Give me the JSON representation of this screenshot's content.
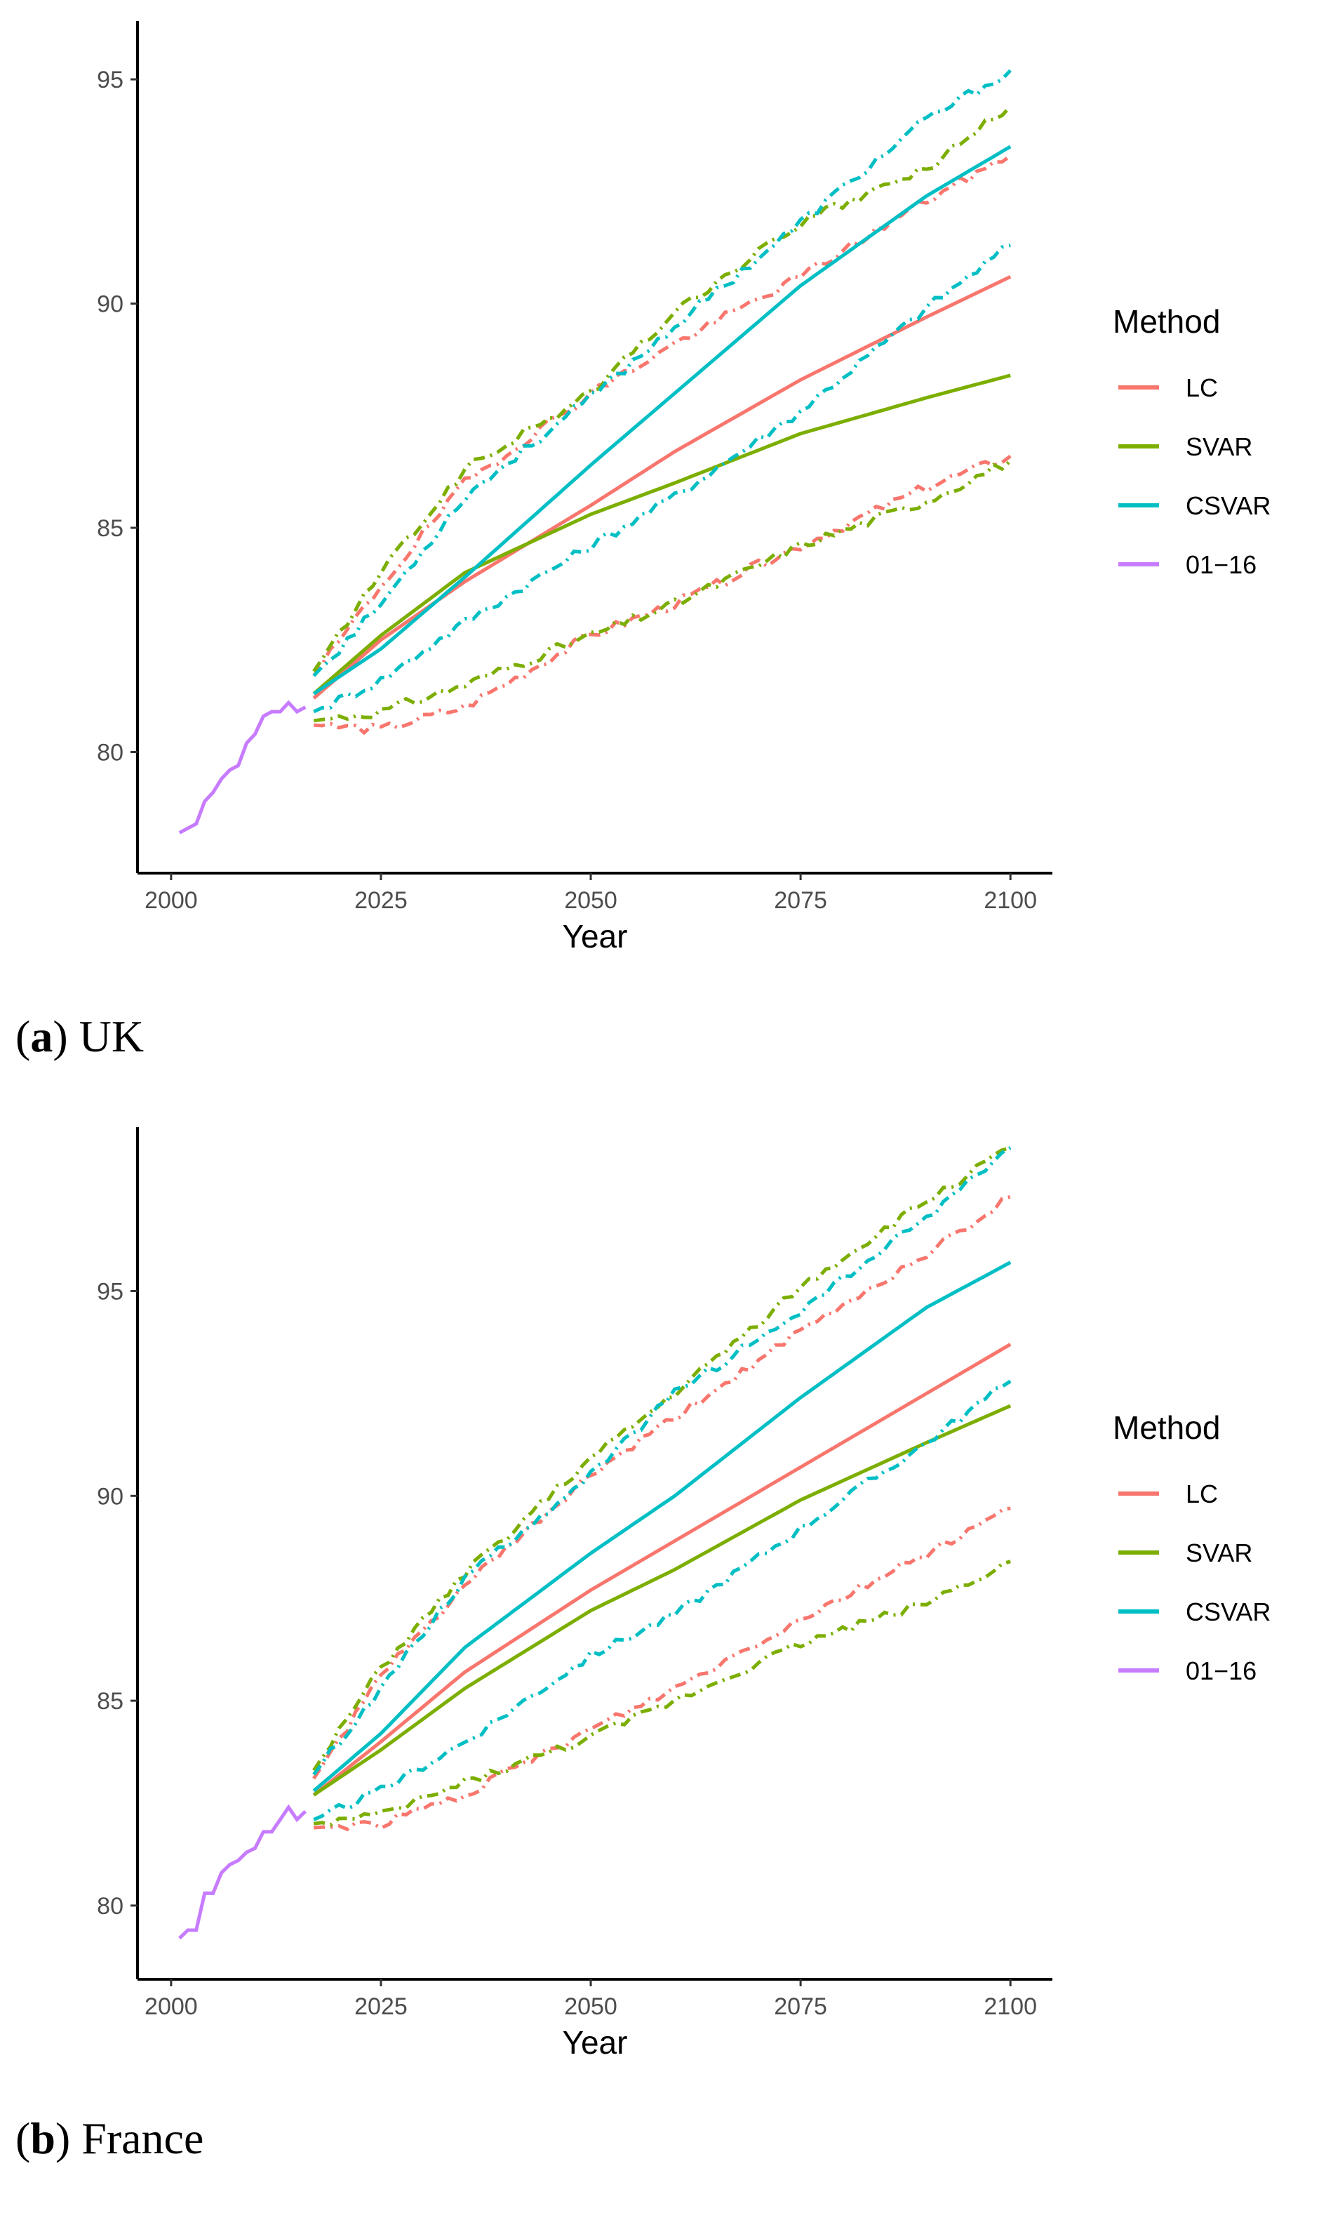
{
  "chart_data": [
    {
      "type": "line",
      "caption_letter": "a",
      "caption_text": "UK",
      "xlabel": "Year",
      "ylabel": "",
      "xlim": [
        1996,
        2105
      ],
      "ylim": [
        77.3,
        96.3
      ],
      "xticks": [
        2000,
        2025,
        2050,
        2075,
        2100
      ],
      "yticks": [
        80,
        85,
        90,
        95
      ],
      "legend": {
        "title": "Method",
        "position": "right",
        "entries": [
          {
            "name": "LC",
            "color": "#F8766D"
          },
          {
            "name": "SVAR",
            "color": "#7CAE00"
          },
          {
            "name": "CSVAR",
            "color": "#00BFC4"
          },
          {
            "name": "01−16",
            "color": "#C77CFF"
          }
        ]
      },
      "historical": {
        "name": "01−16",
        "x": [
          2001,
          2002,
          2003,
          2004,
          2005,
          2006,
          2007,
          2008,
          2009,
          2010,
          2011,
          2012,
          2013,
          2014,
          2015,
          2016
        ],
        "y": [
          78.2,
          78.3,
          78.4,
          78.9,
          79.1,
          79.4,
          79.6,
          79.7,
          80.2,
          80.4,
          80.8,
          80.9,
          80.9,
          81.1,
          80.9,
          81.0
        ]
      },
      "series": [
        {
          "name": "LC",
          "color": "#F8766D",
          "x": [
            2017,
            2025,
            2035,
            2050,
            2060,
            2075,
            2090,
            2100
          ],
          "mean": [
            81.2,
            82.5,
            83.8,
            85.5,
            86.7,
            88.3,
            89.7,
            90.6
          ],
          "lower": [
            80.6,
            80.5,
            81.0,
            82.6,
            83.3,
            84.6,
            85.9,
            86.6
          ],
          "upper": [
            81.7,
            83.7,
            86.0,
            88.0,
            89.1,
            90.6,
            92.3,
            93.3
          ]
        },
        {
          "name": "SVAR",
          "color": "#7CAE00",
          "x": [
            2017,
            2025,
            2035,
            2050,
            2060,
            2075,
            2090,
            2100
          ],
          "mean": [
            81.3,
            82.6,
            84.0,
            85.3,
            86.0,
            87.1,
            87.9,
            88.4
          ],
          "lower": [
            80.7,
            80.9,
            81.5,
            82.6,
            83.3,
            84.6,
            85.6,
            86.5
          ],
          "upper": [
            81.8,
            84.0,
            86.3,
            88.0,
            89.8,
            91.8,
            93.0,
            94.4
          ]
        },
        {
          "name": "CSVAR",
          "color": "#00BFC4",
          "x": [
            2017,
            2025,
            2035,
            2050,
            2060,
            2075,
            2090,
            2100
          ],
          "mean": [
            81.3,
            82.3,
            83.9,
            86.4,
            88.0,
            90.4,
            92.4,
            93.5
          ],
          "lower": [
            80.9,
            81.6,
            82.9,
            84.6,
            85.7,
            87.6,
            89.9,
            91.3
          ],
          "upper": [
            81.7,
            83.3,
            85.7,
            87.9,
            89.5,
            91.8,
            94.1,
            95.2
          ]
        }
      ]
    },
    {
      "type": "line",
      "caption_letter": "b",
      "caption_text": "France",
      "xlabel": "Year",
      "ylabel": "",
      "xlim": [
        1996,
        2105
      ],
      "ylim": [
        78.2,
        99.0
      ],
      "xticks": [
        2000,
        2025,
        2050,
        2075,
        2100
      ],
      "yticks": [
        80,
        85,
        90,
        95
      ],
      "legend": {
        "title": "Method",
        "position": "right",
        "entries": [
          {
            "name": "LC",
            "color": "#F8766D"
          },
          {
            "name": "SVAR",
            "color": "#7CAE00"
          },
          {
            "name": "CSVAR",
            "color": "#00BFC4"
          },
          {
            "name": "01−16",
            "color": "#C77CFF"
          }
        ]
      },
      "historical": {
        "name": "01−16",
        "x": [
          2001,
          2002,
          2003,
          2004,
          2005,
          2006,
          2007,
          2008,
          2009,
          2010,
          2011,
          2012,
          2013,
          2014,
          2015,
          2016
        ],
        "y": [
          79.2,
          79.4,
          79.4,
          80.3,
          80.3,
          80.8,
          81.0,
          81.1,
          81.3,
          81.4,
          81.8,
          81.8,
          82.1,
          82.4,
          82.1,
          82.3
        ]
      },
      "series": [
        {
          "name": "LC",
          "color": "#F8766D",
          "x": [
            2017,
            2025,
            2035,
            2050,
            2060,
            2075,
            2090,
            2100
          ],
          "mean": [
            82.7,
            84.0,
            85.7,
            87.7,
            88.9,
            90.7,
            92.5,
            93.7
          ],
          "lower": [
            81.9,
            82.0,
            82.7,
            84.3,
            85.3,
            87.0,
            88.6,
            89.7
          ],
          "upper": [
            83.1,
            85.6,
            87.8,
            90.5,
            91.9,
            94.0,
            95.9,
            97.3
          ]
        },
        {
          "name": "SVAR",
          "color": "#7CAE00",
          "x": [
            2017,
            2025,
            2035,
            2050,
            2060,
            2075,
            2090,
            2100
          ],
          "mean": [
            82.7,
            83.8,
            85.3,
            87.2,
            88.2,
            89.9,
            91.3,
            92.2
          ],
          "lower": [
            82.0,
            82.2,
            83.0,
            84.1,
            85.0,
            86.4,
            87.4,
            88.4
          ],
          "upper": [
            83.3,
            85.8,
            88.1,
            90.9,
            92.5,
            95.1,
            97.2,
            98.5
          ]
        },
        {
          "name": "CSVAR",
          "color": "#00BFC4",
          "x": [
            2017,
            2025,
            2035,
            2050,
            2060,
            2075,
            2090,
            2100
          ],
          "mean": [
            82.8,
            84.2,
            86.3,
            88.6,
            90.0,
            92.4,
            94.6,
            95.7
          ],
          "lower": [
            82.1,
            82.8,
            84.0,
            86.1,
            87.1,
            89.2,
            91.3,
            92.8
          ],
          "upper": [
            83.2,
            85.3,
            88.0,
            90.5,
            92.5,
            94.5,
            96.8,
            98.5
          ]
        }
      ]
    }
  ]
}
